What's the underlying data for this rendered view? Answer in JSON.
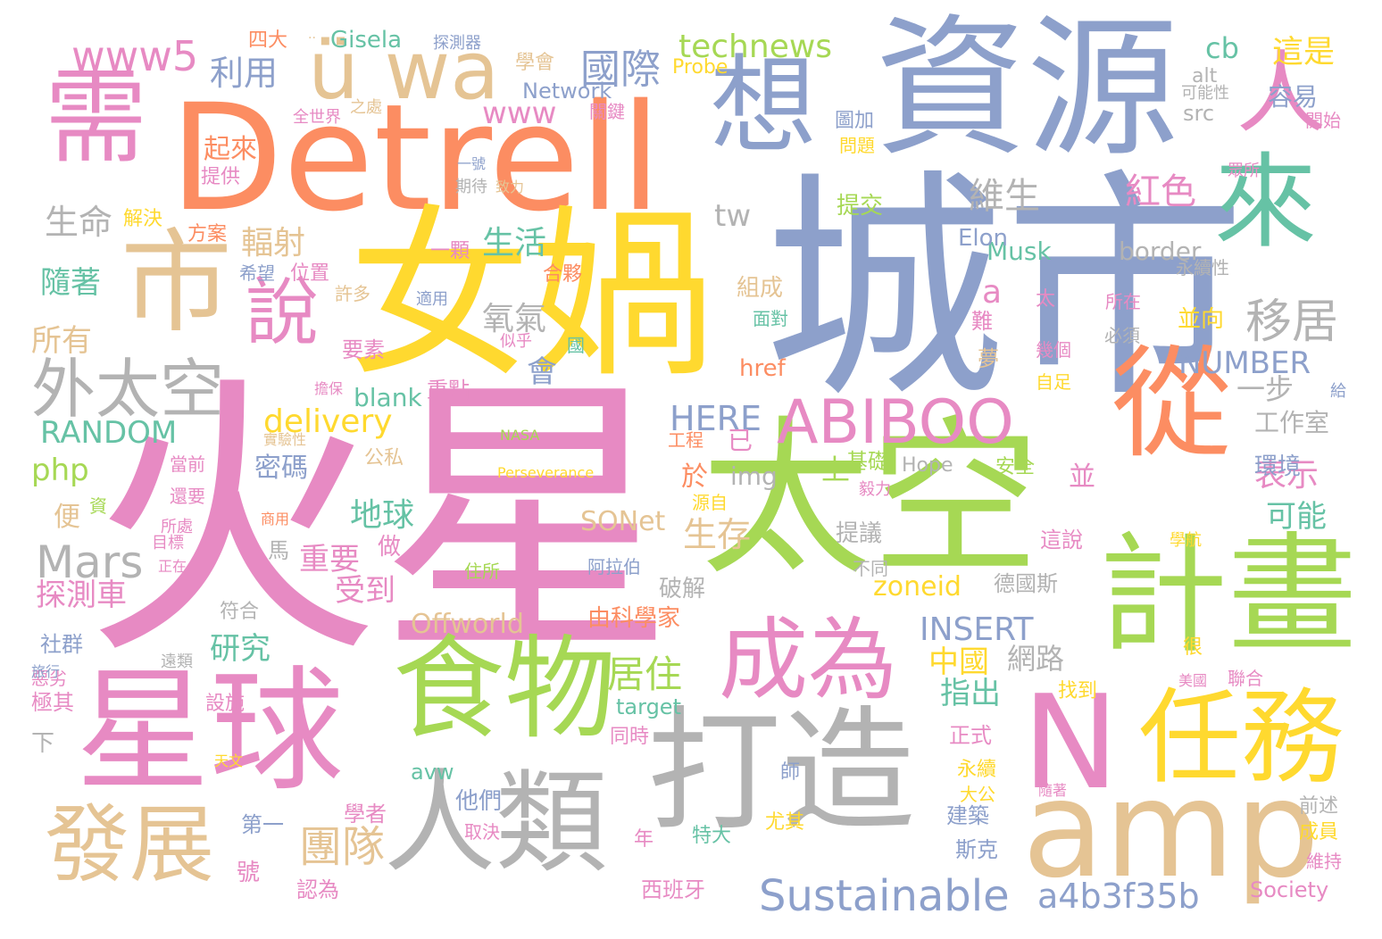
{
  "palette": {
    "pink": "#e78ac3",
    "blue": "#8da0cb",
    "orange": "#fc8d62",
    "yellow": "#ffd92f",
    "green": "#a6d854",
    "teal": "#66c2a5",
    "tan": "#e5c494",
    "gray": "#b3b3b3"
  },
  "words": [
    {
      "text": "火星",
      "color": "pink"
    },
    {
      "text": "城市",
      "color": "blue"
    },
    {
      "text": "Detrell",
      "color": "orange"
    },
    {
      "text": "資源",
      "color": "blue"
    },
    {
      "text": "女媧",
      "color": "yellow"
    },
    {
      "text": "太空",
      "color": "green"
    },
    {
      "text": "星球",
      "color": "pink"
    },
    {
      "text": "打造",
      "color": "gray"
    },
    {
      "text": "計畫",
      "color": "green"
    },
    {
      "text": "N",
      "color": "pink"
    },
    {
      "text": "amp",
      "color": "tan"
    },
    {
      "text": "人類",
      "color": "gray"
    },
    {
      "text": "食物",
      "color": "green"
    },
    {
      "text": "任務",
      "color": "yellow"
    },
    {
      "text": "從",
      "color": "orange"
    },
    {
      "text": "想",
      "color": "blue"
    },
    {
      "text": "來",
      "color": "teal"
    },
    {
      "text": "人",
      "color": "pink"
    },
    {
      "text": "需",
      "color": "pink"
    },
    {
      "text": "市",
      "color": "tan"
    },
    {
      "text": "成為",
      "color": "pink"
    },
    {
      "text": "發展",
      "color": "tan"
    },
    {
      "text": "ü wa",
      "color": "tan"
    },
    {
      "text": "ABIBOO",
      "color": "pink"
    },
    {
      "text": "說",
      "color": "pink"
    },
    {
      "text": "外太空",
      "color": "gray"
    },
    {
      "text": "Sustainable",
      "color": "blue"
    },
    {
      "text": "國際",
      "color": "blue"
    },
    {
      "text": "technews",
      "color": "green"
    },
    {
      "text": "www5",
      "color": "pink"
    },
    {
      "text": "移居",
      "color": "gray"
    },
    {
      "text": "團隊",
      "color": "tan"
    },
    {
      "text": "a4b3f35b",
      "color": "blue"
    },
    {
      "text": "Mars",
      "color": "gray"
    },
    {
      "text": "居住",
      "color": "green"
    },
    {
      "text": "紅色",
      "color": "pink"
    },
    {
      "text": "維生",
      "color": "gray"
    },
    {
      "text": "delivery",
      "color": "yellow"
    },
    {
      "text": "NUMBER",
      "color": "blue"
    },
    {
      "text": "HERE",
      "color": "blue"
    },
    {
      "text": "RANDOM",
      "color": "teal"
    },
    {
      "text": "INSERT",
      "color": "blue"
    },
    {
      "text": "生命",
      "color": "gray"
    },
    {
      "text": "利用",
      "color": "blue"
    },
    {
      "text": "cb",
      "color": "teal"
    },
    {
      "text": "這是",
      "color": "yellow"
    },
    {
      "text": "www",
      "color": "pink"
    },
    {
      "text": "生活",
      "color": "teal"
    },
    {
      "text": "地球",
      "color": "teal"
    },
    {
      "text": "生存",
      "color": "tan"
    },
    {
      "text": "輻射",
      "color": "tan"
    },
    {
      "text": "氧氣",
      "color": "gray"
    },
    {
      "text": "探測車",
      "color": "pink"
    },
    {
      "text": "重要",
      "color": "pink"
    },
    {
      "text": "受到",
      "color": "pink"
    },
    {
      "text": "研究",
      "color": "teal"
    },
    {
      "text": "隨著",
      "color": "teal"
    },
    {
      "text": "所有",
      "color": "tan"
    },
    {
      "text": "Offworld",
      "color": "tan"
    },
    {
      "text": "php",
      "color": "green"
    },
    {
      "text": "表示",
      "color": "pink"
    },
    {
      "text": "可能",
      "color": "teal"
    },
    {
      "text": "一步",
      "color": "gray"
    },
    {
      "text": "指出",
      "color": "teal"
    },
    {
      "text": "中國",
      "color": "yellow"
    },
    {
      "text": "網路",
      "color": "gray"
    },
    {
      "text": "tw",
      "color": "gray"
    },
    {
      "text": "a",
      "color": "pink"
    },
    {
      "text": "src",
      "color": "gray"
    },
    {
      "text": "border",
      "color": "gray"
    },
    {
      "text": "Musk",
      "color": "teal"
    },
    {
      "text": "Elon",
      "color": "blue"
    },
    {
      "text": "容易",
      "color": "blue"
    },
    {
      "text": "工作室",
      "color": "gray"
    },
    {
      "text": "環境",
      "color": "blue"
    },
    {
      "text": "密碼",
      "color": "blue"
    },
    {
      "text": "會",
      "color": "blue"
    },
    {
      "text": "於",
      "color": "orange"
    },
    {
      "text": "並",
      "color": "pink"
    },
    {
      "text": "SONet",
      "color": "tan"
    },
    {
      "text": "img",
      "color": "gray"
    },
    {
      "text": "zoneid",
      "color": "yellow"
    },
    {
      "text": "上",
      "color": "green"
    },
    {
      "text": "基礎",
      "color": "green"
    },
    {
      "text": "提議",
      "color": "gray"
    },
    {
      "text": "破解",
      "color": "gray"
    },
    {
      "text": "由科學家",
      "color": "orange"
    },
    {
      "text": "德國斯",
      "color": "gray"
    },
    {
      "text": "blank",
      "color": "teal"
    },
    {
      "text": "href",
      "color": "orange"
    },
    {
      "text": "組成",
      "color": "tan"
    },
    {
      "text": "起來",
      "color": "orange"
    },
    {
      "text": "解決",
      "color": "yellow"
    },
    {
      "text": "提供",
      "color": "pink"
    },
    {
      "text": "合夥",
      "color": "orange"
    },
    {
      "text": "提交",
      "color": "green"
    },
    {
      "text": "並向",
      "color": "yellow"
    },
    {
      "text": "公私",
      "color": "tan"
    },
    {
      "text": "便",
      "color": "tan"
    },
    {
      "text": "做",
      "color": "pink"
    },
    {
      "text": "符合",
      "color": "gray"
    },
    {
      "text": "社群",
      "color": "blue"
    },
    {
      "text": "極其",
      "color": "pink"
    },
    {
      "text": "設施",
      "color": "pink"
    },
    {
      "text": "target",
      "color": "teal"
    },
    {
      "text": "同時",
      "color": "pink"
    },
    {
      "text": "正式",
      "color": "pink"
    },
    {
      "text": "永續",
      "color": "yellow"
    },
    {
      "text": "大公",
      "color": "yellow"
    },
    {
      "text": "建築",
      "color": "blue"
    },
    {
      "text": "斯克",
      "color": "blue"
    },
    {
      "text": "avw",
      "color": "teal"
    },
    {
      "text": "他們",
      "color": "blue"
    },
    {
      "text": "取決",
      "color": "pink"
    },
    {
      "text": "學者",
      "color": "pink"
    },
    {
      "text": "第一",
      "color": "blue"
    },
    {
      "text": "號",
      "color": "pink"
    },
    {
      "text": "認為",
      "color": "pink"
    },
    {
      "text": "年",
      "color": "pink"
    },
    {
      "text": "特大",
      "color": "teal"
    },
    {
      "text": "尤其",
      "color": "yellow"
    },
    {
      "text": "西班牙",
      "color": "pink"
    },
    {
      "text": "Society",
      "color": "pink"
    },
    {
      "text": "成員",
      "color": "yellow"
    },
    {
      "text": "維持",
      "color": "pink"
    },
    {
      "text": "前述",
      "color": "gray"
    },
    {
      "text": "Network",
      "color": "blue"
    },
    {
      "text": "學會",
      "color": "tan"
    },
    {
      "text": "Probe",
      "color": "yellow"
    },
    {
      "text": "關鍵",
      "color": "pink"
    },
    {
      "text": "四大",
      "color": "orange"
    },
    {
      "text": "Gisela",
      "color": "teal"
    },
    {
      "text": "探測器",
      "color": "blue"
    },
    {
      "text": "全世界",
      "color": "pink"
    },
    {
      "text": "之處",
      "color": "tan"
    },
    {
      "text": "alt",
      "color": "gray"
    },
    {
      "text": "可能性",
      "color": "gray"
    },
    {
      "text": "開始",
      "color": "pink"
    },
    {
      "text": "圖加",
      "color": "blue"
    },
    {
      "text": "問題",
      "color": "yellow"
    },
    {
      "text": "一號",
      "color": "blue"
    },
    {
      "text": "期待",
      "color": "gray"
    },
    {
      "text": "致力",
      "color": "tan"
    },
    {
      "text": "眾所",
      "color": "pink"
    },
    {
      "text": "方案",
      "color": "orange"
    },
    {
      "text": "一顆",
      "color": "pink"
    },
    {
      "text": "希望",
      "color": "blue"
    },
    {
      "text": "位置",
      "color": "pink"
    },
    {
      "text": "許多",
      "color": "tan"
    },
    {
      "text": "適用",
      "color": "blue"
    },
    {
      "text": "面對",
      "color": "teal"
    },
    {
      "text": "所在",
      "color": "pink"
    },
    {
      "text": "永續性",
      "color": "gray"
    },
    {
      "text": "太",
      "color": "pink"
    },
    {
      "text": "必須",
      "color": "gray"
    },
    {
      "text": "似乎",
      "color": "pink"
    },
    {
      "text": "國",
      "color": "teal"
    },
    {
      "text": "要素",
      "color": "pink"
    },
    {
      "text": "難",
      "color": "pink"
    },
    {
      "text": "夢",
      "color": "tan"
    },
    {
      "text": "幾個",
      "color": "pink"
    },
    {
      "text": "自足",
      "color": "yellow"
    },
    {
      "text": "給",
      "color": "blue"
    },
    {
      "text": "擔保",
      "color": "pink"
    },
    {
      "text": "重點",
      "color": "pink"
    },
    {
      "text": "實驗性",
      "color": "tan"
    },
    {
      "text": "NASA",
      "color": "green"
    },
    {
      "text": "Perseverance",
      "color": "yellow"
    },
    {
      "text": "工程",
      "color": "orange"
    },
    {
      "text": "已",
      "color": "pink"
    },
    {
      "text": "Hope",
      "color": "gray"
    },
    {
      "text": "安全",
      "color": "green"
    },
    {
      "text": "毅力",
      "color": "pink"
    },
    {
      "text": "當前",
      "color": "pink"
    },
    {
      "text": "還要",
      "color": "pink"
    },
    {
      "text": "資",
      "color": "green"
    },
    {
      "text": "所處",
      "color": "pink"
    },
    {
      "text": "商用",
      "color": "orange"
    },
    {
      "text": "源自",
      "color": "yellow"
    },
    {
      "text": "目標",
      "color": "pink"
    },
    {
      "text": "正在",
      "color": "pink"
    },
    {
      "text": "馬",
      "color": "gray"
    },
    {
      "text": "住所",
      "color": "green"
    },
    {
      "text": "阿拉伯",
      "color": "blue"
    },
    {
      "text": "這說",
      "color": "pink"
    },
    {
      "text": "不同",
      "color": "gray"
    },
    {
      "text": "學航",
      "color": "yellow"
    },
    {
      "text": "惡劣",
      "color": "pink"
    },
    {
      "text": "旅行",
      "color": "blue"
    },
    {
      "text": "遠類",
      "color": "gray"
    },
    {
      "text": "下",
      "color": "gray"
    },
    {
      "text": "很",
      "color": "yellow"
    },
    {
      "text": "找到",
      "color": "yellow"
    },
    {
      "text": "美國",
      "color": "pink"
    },
    {
      "text": "聯合",
      "color": "pink"
    },
    {
      "text": "天文",
      "color": "yellow"
    },
    {
      "text": "師",
      "color": "blue"
    },
    {
      "text": "隨著",
      "color": "pink"
    },
    {
      "text": "..",
      "color": "tan"
    }
  ]
}
